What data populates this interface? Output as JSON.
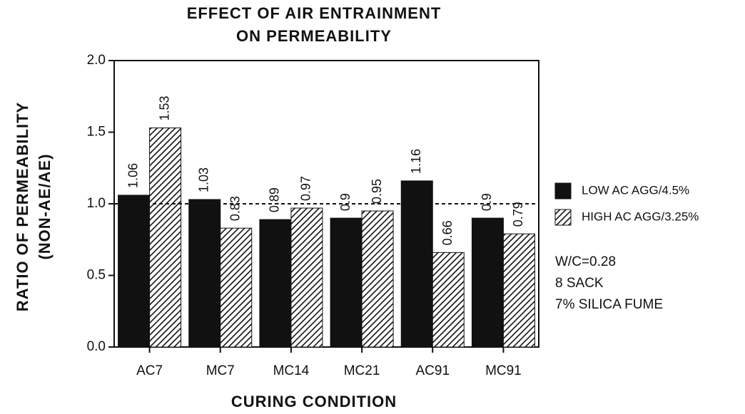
{
  "chart_data": {
    "type": "bar",
    "title": [
      "EFFECT OF AIR ENTRAINMENT",
      "ON PERMEABILITY"
    ],
    "x_label": "CURING CONDITION",
    "y_label": [
      "RATIO OF PERMEABILITY",
      "(NON-AE/AE)"
    ],
    "categories": [
      "AC7",
      "MC7",
      "MC14",
      "MC21",
      "AC91",
      "MC91"
    ],
    "series": [
      {
        "name": "LOW AC AGG/4.5%",
        "color": "#111111",
        "pattern": "solid",
        "values": [
          1.06,
          1.03,
          0.89,
          0.9,
          1.16,
          0.9
        ]
      },
      {
        "name": "HIGH AC AGG/3.25%",
        "color": "#111111",
        "pattern": "hatch",
        "values": [
          1.53,
          0.83,
          0.97,
          0.95,
          0.66,
          0.79
        ]
      }
    ],
    "ylim": [
      0,
      2
    ],
    "yticks": [
      {
        "value": 0,
        "label": "0.0"
      },
      0.5,
      {
        "value": 1,
        "label": "1.0"
      },
      1.5,
      {
        "value": 2,
        "label": "2.0"
      }
    ],
    "reference_line": 1,
    "notes": [
      "W/C=0.28",
      "8 SACK",
      "7% SILICA FUME"
    ],
    "legend": "right"
  }
}
